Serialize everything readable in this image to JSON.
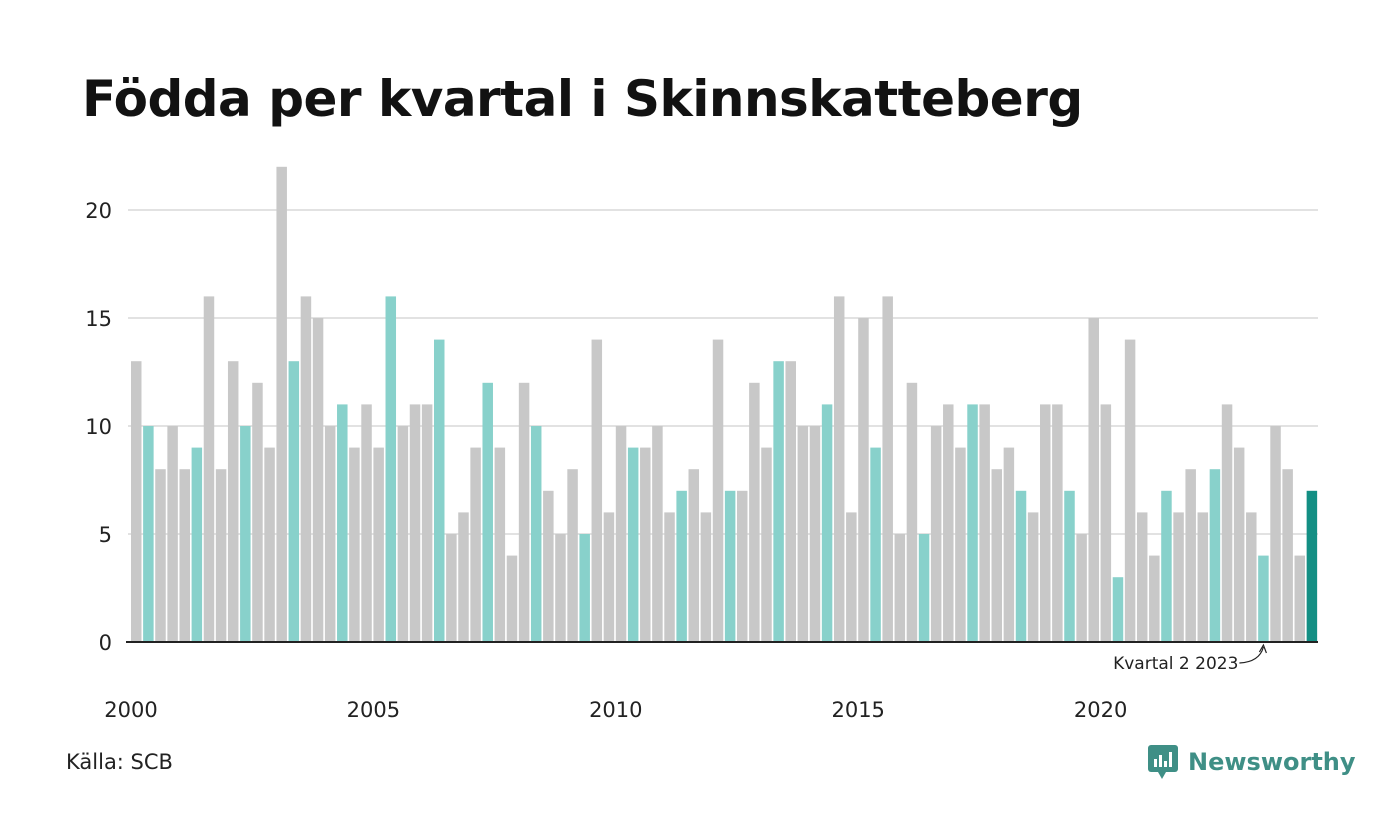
{
  "title": "Födda per kvartal i Skinnskatteberg",
  "source": "Källa: SCB",
  "brand": {
    "name": "Newsworthy",
    "icon": "newsworthy-logo-icon"
  },
  "colors": {
    "other_quarters": "#c8c8c8",
    "same_quarter": "#88d1cb",
    "latest": "#138f84",
    "grid": "#e2e2e2",
    "axis": "#222222"
  },
  "chart_data": {
    "type": "bar",
    "title": "Födda per kvartal i Skinnskatteberg",
    "x_tick_labels": [
      "2000",
      "2005",
      "2010",
      "2015",
      "2020"
    ],
    "y_tick_labels": [
      "0",
      "5",
      "10",
      "15",
      "20"
    ],
    "ylim": [
      0,
      22
    ],
    "grid": true,
    "annotation": {
      "label": "Kvartal 2 2023",
      "target_index": 93
    },
    "highlight_quarter": 2,
    "start_year": 2000,
    "values": [
      13,
      10,
      8,
      10,
      8,
      9,
      16,
      8,
      13,
      10,
      12,
      9,
      22,
      13,
      16,
      15,
      10,
      11,
      9,
      11,
      9,
      16,
      10,
      11,
      11,
      14,
      5,
      6,
      9,
      12,
      9,
      4,
      12,
      10,
      7,
      5,
      8,
      5,
      14,
      6,
      10,
      9,
      9,
      10,
      6,
      7,
      8,
      6,
      14,
      7,
      7,
      12,
      9,
      13,
      13,
      10,
      10,
      11,
      16,
      6,
      15,
      9,
      16,
      5,
      12,
      5,
      10,
      11,
      9,
      11,
      11,
      8,
      9,
      7,
      6,
      11,
      11,
      7,
      5,
      15,
      11,
      3,
      14,
      6,
      4,
      7,
      6,
      8,
      6,
      8,
      11,
      9,
      6,
      4,
      10,
      8,
      4,
      7
    ]
  }
}
